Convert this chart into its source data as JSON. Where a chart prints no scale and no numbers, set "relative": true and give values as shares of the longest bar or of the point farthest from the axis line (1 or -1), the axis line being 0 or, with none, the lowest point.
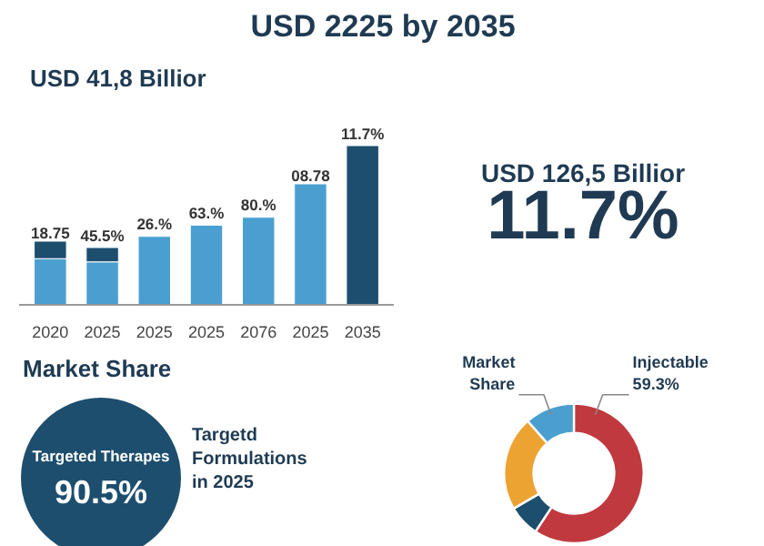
{
  "chart_data": [
    {
      "type": "bar",
      "title": "USD 2225 by 2035",
      "subtitle": "USD 41,8 Billior",
      "categories": [
        "2020",
        "2025",
        "2025",
        "2025",
        "2076",
        "2025",
        "2035"
      ],
      "relative": true,
      "stacked": true,
      "series": [
        {
          "color": "#4a9fd0",
          "values": [
            0.29,
            0.27,
            0.43,
            0.5,
            0.55,
            0.76,
            null
          ]
        },
        {
          "color": "#1d4e6e",
          "values": [
            0.11,
            0.09,
            null,
            null,
            null,
            null,
            1.0
          ]
        }
      ],
      "annotations": [
        "18.75",
        "45.5%",
        "26.%",
        "63.%",
        "80.%",
        "08.78",
        "11.7%"
      ]
    },
    {
      "type": "other",
      "annotations": [
        "USD 126,5 Billior",
        "11.7%"
      ]
    },
    {
      "type": "other",
      "title": "Market Share",
      "annotations": [
        "Targeted Therapes",
        "90.5%",
        "Targetd Formulations in 2025"
      ]
    },
    {
      "type": "donut",
      "categories": [
        "Injectable",
        null,
        null,
        "Market Share"
      ],
      "values": [
        59.3,
        7.3,
        21.9,
        11.5
      ],
      "colors": [
        "#c0393f",
        "#1d4e6e",
        "#eda332",
        "#4a9fd0"
      ],
      "value_labels": [
        "59.3%",
        null,
        null,
        null
      ]
    }
  ]
}
